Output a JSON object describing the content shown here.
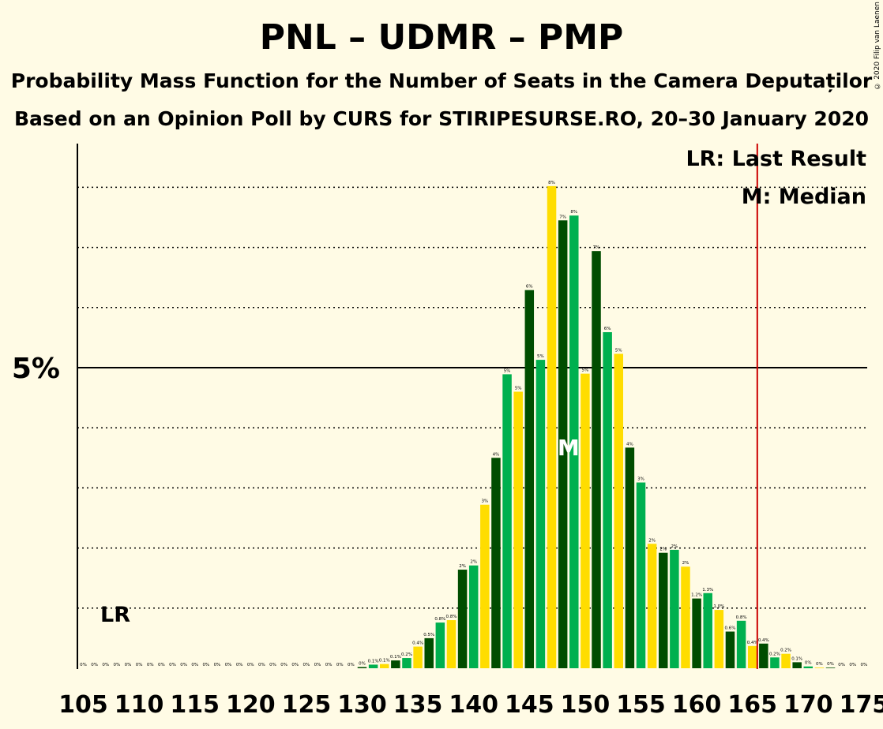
{
  "header": {
    "title": "PNL – UDMR – PMP",
    "subtitle1": "Probability Mass Function for the Number of Seats in the Camera Deputaților",
    "subtitle2": "Based on an Opinion Poll by CURS for STIRIPESURSE.RO, 20–30 January 2020",
    "copyright": "© 2020 Filip van Laenen"
  },
  "legend": {
    "last_result": "LR: Last Result",
    "median": "M: Median"
  },
  "markers": {
    "lr_label": "LR",
    "median_label": "M",
    "last_result_seat": 166,
    "median_seat": 149
  },
  "colors": {
    "dark_green": "#004d00",
    "green": "#00b04f",
    "yellow": "#ffdd00",
    "last_result_line": "#cc0000"
  },
  "chart_data": {
    "type": "bar",
    "title": "PNL – UDMR – PMP",
    "xlabel": "",
    "ylabel": "",
    "xlim": [
      105,
      175
    ],
    "ylim": [
      0,
      11
    ],
    "y_tick_label": "5%",
    "x_ticks": [
      "105",
      "110",
      "115",
      "120",
      "125",
      "130",
      "135",
      "140",
      "145",
      "150",
      "155",
      "160",
      "165",
      "170",
      "175"
    ],
    "grid": "dotted horizontal every 1%, solid at 5%",
    "legend_placement": "top-right",
    "x": [
      105,
      106,
      107,
      108,
      109,
      110,
      111,
      112,
      113,
      114,
      115,
      116,
      117,
      118,
      119,
      120,
      121,
      122,
      123,
      124,
      125,
      126,
      127,
      128,
      129,
      130,
      131,
      132,
      133,
      134,
      135,
      136,
      137,
      138,
      139,
      140,
      141,
      142,
      143,
      144,
      145,
      146,
      147,
      148,
      149,
      150,
      151,
      152,
      153,
      154,
      155,
      156,
      157,
      158,
      159,
      160,
      161,
      162,
      163,
      164,
      165,
      166,
      167,
      168,
      169,
      170,
      171,
      172,
      173,
      174,
      175
    ],
    "values": [
      0,
      0,
      0,
      0,
      0,
      0,
      0,
      0,
      0,
      0,
      0,
      0,
      0,
      0,
      0,
      0,
      0,
      0,
      0,
      0,
      0,
      0,
      0,
      0,
      0,
      0.02,
      0.06,
      0.07,
      0.13,
      0.17,
      0.36,
      0.5,
      0.76,
      0.8,
      1.64,
      1.71,
      2.72,
      3.5,
      4.89,
      4.6,
      6.29,
      5.13,
      8.02,
      7.45,
      7.53,
      4.9,
      6.94,
      5.59,
      5.23,
      3.67,
      3.09,
      2.07,
      1.92,
      1.97,
      1.69,
      1.16,
      1.25,
      0.97,
      0.61,
      0.79,
      0.37,
      0.41,
      0.18,
      0.24,
      0.1,
      0.03,
      0.01,
      0.01,
      0,
      0,
      0
    ],
    "labels": [
      "0%",
      "0%",
      "0%",
      "0%",
      "0%",
      "0%",
      "0%",
      "0%",
      "0%",
      "0%",
      "0%",
      "0%",
      "0%",
      "0%",
      "0%",
      "0%",
      "0%",
      "0%",
      "0%",
      "0%",
      "0%",
      "0%",
      "0%",
      "0%",
      "0%",
      "0%",
      "0.1%",
      "0.1%",
      "0.1%",
      "0.2%",
      "0.4%",
      "0.5%",
      "0.8%",
      "0.8%",
      "2%",
      "2%",
      "3%",
      "4%",
      "5%",
      "5%",
      "6%",
      "5%",
      "8%",
      "7%",
      "8%",
      "5%",
      "7%",
      "6%",
      "5%",
      "4%",
      "3%",
      "2%",
      "2%",
      "2%",
      "2%",
      "1.2%",
      "1.3%",
      "1.0%",
      "0.6%",
      "0.8%",
      "0.4%",
      "0.4%",
      "0.2%",
      "0.2%",
      "0.1%",
      "0%",
      "0%",
      "0%",
      "0%",
      "0%",
      "0%"
    ]
  }
}
